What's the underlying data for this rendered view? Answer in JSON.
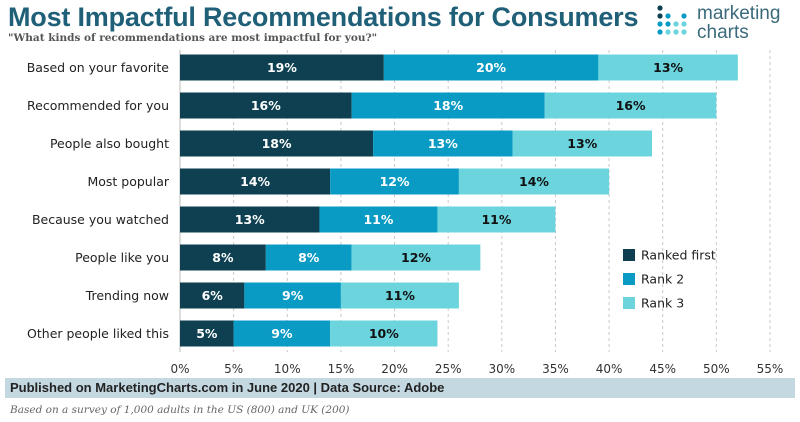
{
  "chart_data": {
    "type": "bar",
    "orientation": "horizontal",
    "stacked": true,
    "title": "Most Impactful Recommendations for Consumers",
    "subtitle": "\"What kinds of recommendations  are most impactful for you?\"",
    "categories": [
      "Based on your favorite",
      "Recommended for you",
      "People also bought",
      "Most popular",
      "Because you watched",
      "People like you",
      "Trending now",
      "Other people liked this"
    ],
    "series": [
      {
        "name": "Ranked first",
        "color": "#0e4051",
        "values": [
          19,
          16,
          18,
          14,
          13,
          8,
          6,
          5
        ]
      },
      {
        "name": "Rank 2",
        "color": "#0a9bc4",
        "values": [
          20,
          18,
          13,
          12,
          11,
          8,
          9,
          9
        ]
      },
      {
        "name": "Rank 3",
        "color": "#6bd4dd",
        "values": [
          13,
          16,
          13,
          14,
          11,
          12,
          11,
          10
        ]
      }
    ],
    "xlim": [
      0,
      55
    ],
    "xticks": [
      "0%",
      "5%",
      "10%",
      "15%",
      "20%",
      "25%",
      "30%",
      "35%",
      "40%",
      "45%",
      "50%",
      "55%"
    ],
    "grid": "vertical dashed",
    "legend": "bottom-right",
    "xlabel": "",
    "ylabel": ""
  },
  "logo": {
    "line1": "marketing",
    "line2": "charts"
  },
  "footer": {
    "source": "Published on MarketingCharts.com in June 2020 | Data Source: Adobe",
    "note": "Based on a survey of 1,000 adults in the US (800) and UK (200)"
  }
}
